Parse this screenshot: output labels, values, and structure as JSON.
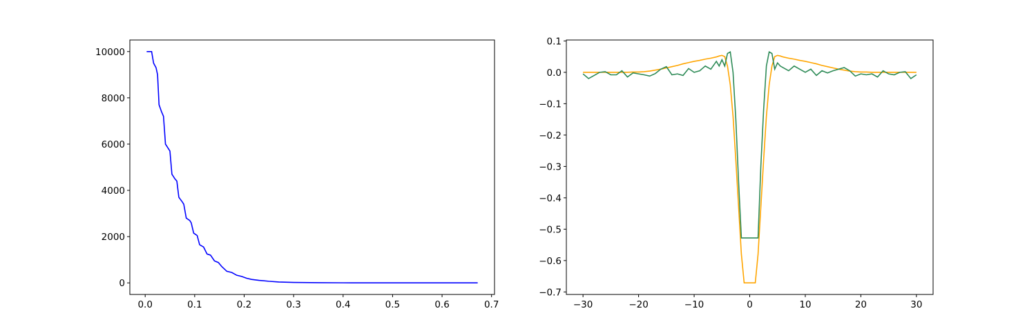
{
  "chart_data": [
    {
      "type": "line",
      "x": [
        0.003,
        0.013,
        0.017,
        0.022,
        0.025,
        0.028,
        0.033,
        0.037,
        0.041,
        0.047,
        0.05,
        0.054,
        0.06,
        0.064,
        0.068,
        0.075,
        0.078,
        0.083,
        0.09,
        0.093,
        0.098,
        0.105,
        0.11,
        0.118,
        0.125,
        0.132,
        0.14,
        0.148,
        0.155,
        0.165,
        0.175,
        0.185,
        0.195,
        0.205,
        0.215,
        0.23,
        0.25,
        0.27,
        0.3,
        0.35,
        0.4,
        0.5,
        0.6,
        0.672
      ],
      "series": [
        {
          "color": "#0000ff",
          "values": [
            10000,
            10000,
            9500,
            9300,
            9000,
            7700,
            7400,
            7200,
            6000,
            5800,
            5700,
            4700,
            4500,
            4400,
            3700,
            3500,
            3400,
            2800,
            2700,
            2600,
            2150,
            2050,
            1650,
            1550,
            1250,
            1200,
            950,
            880,
            700,
            500,
            450,
            330,
            280,
            200,
            150,
            110,
            70,
            40,
            20,
            8,
            3,
            1,
            0,
            0
          ]
        }
      ],
      "xlim": [
        -0.031,
        0.706
      ],
      "ylim": [
        -500,
        10500
      ],
      "xticks": [
        {
          "value": 0,
          "label": "0.0"
        },
        0.1,
        0.2,
        0.3,
        0.4,
        0.5,
        0.6,
        0.7
      ],
      "yticks": [
        0,
        2000,
        4000,
        6000,
        8000,
        10000
      ]
    },
    {
      "type": "line",
      "x": [
        -30,
        -29,
        -28,
        -27,
        -26,
        -25,
        -24,
        -23,
        -22,
        -21,
        -20,
        -19,
        -18,
        -17,
        -16,
        -15,
        -14,
        -13,
        -12,
        -11,
        -10,
        -9,
        -8,
        -7,
        -6,
        -5.5,
        -5,
        -4.5,
        -4,
        -3.5,
        -3,
        -2.5,
        -2,
        -1.5,
        -1,
        -0.5,
        0,
        0.5,
        1,
        1.5,
        2,
        2.5,
        3,
        3.5,
        4,
        4.5,
        5,
        5.5,
        6,
        7,
        8,
        9,
        10,
        11,
        12,
        13,
        14,
        15,
        16,
        17,
        18,
        19,
        20,
        21,
        22,
        23,
        24,
        25,
        26,
        27,
        28,
        29,
        30
      ],
      "series": [
        {
          "color": "#ffa500",
          "values": [
            0,
            0,
            0,
            0,
            0,
            0,
            0,
            0,
            0,
            0.001,
            0.001,
            0.002,
            0.004,
            0.007,
            0.01,
            0.014,
            0.018,
            0.022,
            0.027,
            0.031,
            0.035,
            0.038,
            0.042,
            0.045,
            0.049,
            0.052,
            0.054,
            0.05,
            0.02,
            -0.04,
            -0.14,
            -0.28,
            -0.43,
            -0.58,
            -0.671,
            -0.671,
            -0.671,
            -0.671,
            -0.671,
            -0.58,
            -0.43,
            -0.28,
            -0.14,
            -0.04,
            0.02,
            0.05,
            0.054,
            0.052,
            0.049,
            0.045,
            0.042,
            0.038,
            0.035,
            0.031,
            0.027,
            0.022,
            0.018,
            0.014,
            0.01,
            0.007,
            0.004,
            0.002,
            0.001,
            0.001,
            0,
            0,
            0,
            0,
            0,
            0,
            0,
            0,
            0
          ]
        },
        {
          "color": "#2e8b57",
          "values": [
            -0.005,
            -0.02,
            -0.01,
            0,
            0.002,
            -0.008,
            -0.008,
            0.005,
            -0.015,
            -0.002,
            -0.005,
            -0.008,
            -0.012,
            -0.004,
            0.01,
            0.018,
            -0.008,
            -0.005,
            -0.01,
            0.012,
            0,
            0.005,
            0.02,
            0.01,
            0.035,
            0.02,
            0.04,
            0.02,
            0.06,
            0.065,
            0,
            -0.15,
            -0.35,
            -0.528,
            -0.528,
            -0.528,
            -0.528,
            -0.528,
            -0.528,
            -0.528,
            -0.3,
            -0.12,
            0.02,
            0.065,
            0.06,
            0.01,
            0.03,
            0.02,
            0.015,
            0.005,
            0.02,
            0.01,
            0,
            0.01,
            -0.01,
            0.005,
            -0.002,
            0.005,
            0.01,
            0.015,
            0.005,
            -0.012,
            -0.005,
            -0.008,
            -0.005,
            -0.015,
            0.005,
            -0.005,
            -0.008,
            0,
            0.002,
            -0.02,
            -0.008
          ]
        }
      ],
      "xlim": [
        -33,
        33
      ],
      "ylim": [
        -0.708,
        0.103
      ],
      "xticks": [
        {
          "value": -30,
          "label": "−30"
        },
        {
          "value": -20,
          "label": "−20"
        },
        {
          "value": -10,
          "label": "−10"
        },
        0,
        10,
        20,
        30
      ],
      "yticks": [
        {
          "value": -0.7,
          "label": "−0.7"
        },
        {
          "value": -0.6,
          "label": "−0.6"
        },
        {
          "value": -0.5,
          "label": "−0.5"
        },
        {
          "value": -0.4,
          "label": "−0.4"
        },
        {
          "value": -0.3,
          "label": "−0.3"
        },
        {
          "value": -0.2,
          "label": "−0.2"
        },
        {
          "value": -0.1,
          "label": "−0.1"
        },
        {
          "value": 0,
          "label": "0.0"
        },
        0.1
      ]
    }
  ]
}
